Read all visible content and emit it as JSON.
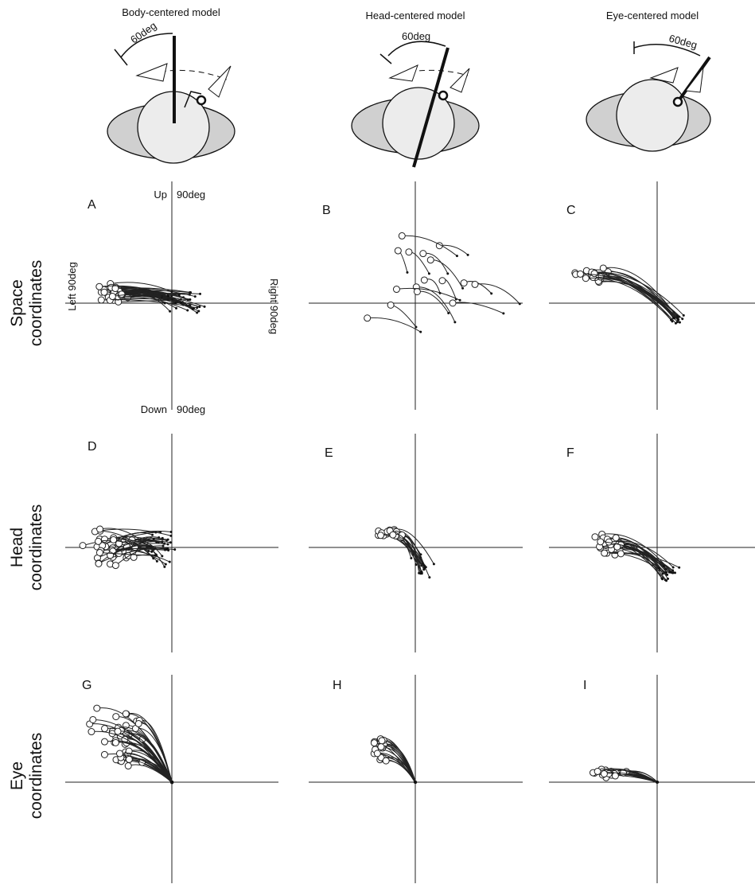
{
  "header": {
    "models": [
      {
        "title": "Body-centered model",
        "angle_label": "60deg"
      },
      {
        "title": "Head-centered model",
        "angle_label": "60deg"
      },
      {
        "title": "Eye-centered model",
        "angle_label": "60deg"
      }
    ]
  },
  "row_labels": [
    {
      "line1": "Space",
      "line2": "coordinates"
    },
    {
      "line1": "Head",
      "line2": "coordinates"
    },
    {
      "line1": "Eye",
      "line2": "coordinates"
    }
  ],
  "panels": [
    "A",
    "B",
    "C",
    "D",
    "E",
    "F",
    "G",
    "H",
    "I"
  ],
  "axis_labels": {
    "up": "Up",
    "up_deg": "90deg",
    "down": "Down",
    "down_deg": "90deg",
    "left": "Left  90deg",
    "right": "Right 90deg"
  }
}
